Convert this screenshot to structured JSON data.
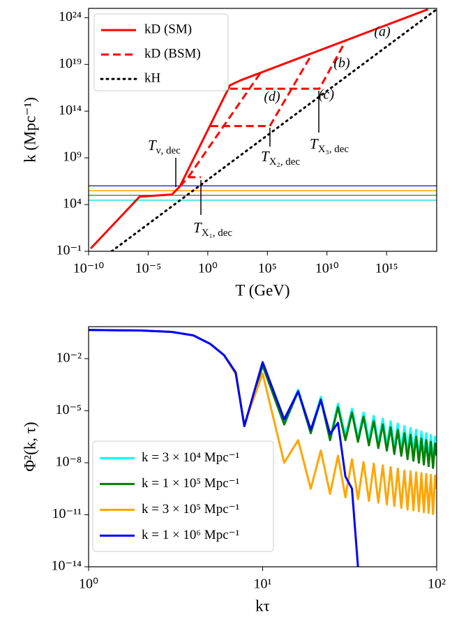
{
  "chart_data": [
    {
      "type": "line",
      "xscale": "log",
      "yscale": "log",
      "xlabel": "T (GeV)",
      "ylabel": "k (Mpc⁻¹)",
      "xlim": [
        1e-10,
        1.6e+19
      ],
      "ylim": [
        0.1,
        1e+25
      ],
      "xticks": [
        {
          "value": 1e-10,
          "label": "10⁻¹⁰"
        },
        {
          "value": 1e-05,
          "label": "10⁻⁵"
        },
        {
          "value": 1,
          "label": "10⁰"
        },
        {
          "value": 100000.0,
          "label": "10⁵"
        },
        {
          "value": 10000000000.0,
          "label": "10¹⁰"
        },
        {
          "value": 1000000000000000.0,
          "label": "10¹⁵"
        }
      ],
      "yticks": [
        {
          "value": 0.1,
          "label": "10⁻¹"
        },
        {
          "value": 10000.0,
          "label": "10⁴"
        },
        {
          "value": 1000000000.0,
          "label": "10⁹"
        },
        {
          "value": 100000000000000.0,
          "label": "10¹⁴"
        },
        {
          "value": 1e+19,
          "label": "10¹⁹"
        },
        {
          "value": 1e+24,
          "label": "10²⁴"
        }
      ],
      "legend": "upper left",
      "series": [
        {
          "name": "kD (SM)",
          "color": "#ff0000",
          "style": "solid",
          "x": [
            1.5e-10,
            1.9e-06,
            0.001,
            0.0046,
            74,
            560,
            3e+18
          ],
          "values": [
            0.2,
            70000.0,
            120000.0,
            900000.0,
            6e+16,
            2e+17,
            8e+24
          ]
        },
        {
          "name": "kD (BSM)",
          "color": "#ff0000",
          "style": "dashed",
          "x": [
            0.0046,
            0.023,
            0.26,
            null,
            0.023,
            32000.0,
            null,
            1.7,
            160000.0,
            510000000.0,
            null,
            74,
            2300000000.0,
            330000000000.0
          ],
          "values": [
            900000.0,
            8500000.0,
            8500000.0,
            null,
            8500000.0,
            1.8e+18,
            null,
            2500000000000.0,
            2500000000000.0,
            1.1e+20,
            null,
            2.5e+16,
            2.5e+16,
            2.5e+21
          ]
        },
        {
          "name": "kH",
          "color": "#000000",
          "style": "dotted",
          "x": [
            8.5e-09,
            1.6e+19
          ],
          "values": [
            0.1,
            8e+24
          ]
        }
      ],
      "hlines": [
        {
          "value": 1000000.0,
          "color": "#2a3bd6"
        },
        {
          "value": 300000.0,
          "color": "#ffa500"
        },
        {
          "value": 100000.0,
          "color": "#4c9a2a"
        },
        {
          "value": 30000.0,
          "color": "#22e0e0"
        }
      ],
      "annotations": [
        {
          "symbol": "T",
          "subscript": "ν, dec"
        },
        {
          "symbol": "T",
          "subscript": "X₁, dec"
        },
        {
          "symbol": "T",
          "subscript": "X₂, dec"
        },
        {
          "symbol": "T",
          "subscript": "X₃, dec"
        }
      ],
      "labels": [
        "(a)",
        "(b)",
        "(c)",
        "(d)"
      ],
      "label_color": "#800080"
    },
    {
      "type": "line",
      "xscale": "log",
      "yscale": "log",
      "xlabel": "kτ",
      "ylabel": "Φ²(k, τ)",
      "xlim": [
        1,
        100
      ],
      "ylim": [
        1e-14,
        0.7
      ],
      "xticks": [
        {
          "value": 1,
          "label": "10⁰"
        },
        {
          "value": 10,
          "label": "10¹"
        },
        {
          "value": 100,
          "label": "10²"
        }
      ],
      "yticks": [
        {
          "value": 0.01,
          "label": "10⁻²"
        },
        {
          "value": 1e-05,
          "label": "10⁻⁵"
        },
        {
          "value": 1e-08,
          "label": "10⁻⁸"
        },
        {
          "value": 1e-11,
          "label": "10⁻¹¹"
        },
        {
          "value": 1e-14,
          "label": "10⁻¹⁴"
        }
      ],
      "legend": "lower left",
      "x": [
        1,
        2,
        3,
        4,
        5,
        6,
        7,
        7.85,
        10,
        13.3,
        16,
        18.9,
        21.6,
        24.4,
        27.1,
        29.9,
        32.6,
        35.3,
        38,
        40.8,
        43.5,
        46.2,
        49,
        51.7,
        54.4,
        57.1,
        59.8,
        62.6,
        65.3,
        68,
        70.8,
        73.5,
        76.2,
        79,
        81.7,
        84.4,
        87.1,
        89.9,
        92.6,
        95.3,
        98,
        100
      ],
      "series": [
        {
          "name": "k = 3 × 10⁴ Mpc⁻¹",
          "color": "#00ffff",
          "style": "solid",
          "values": [
            0.45,
            0.42,
            0.35,
            0.22,
            0.071,
            0.016,
            0.0016,
            1.3e-06,
            0.0045,
            2e-06,
            0.00016,
            6.3e-07,
            6.3e-05,
            2.5e-07,
            2.5e-05,
            3.2e-07,
            1.3e-05,
            2.5e-07,
            7.9e-06,
            2e-07,
            5e-06,
            1.3e-07,
            3.5e-06,
            1e-07,
            2.5e-06,
            6.3e-08,
            1.8e-06,
            5e-08,
            1.3e-06,
            4e-08,
            1e-06,
            3.2e-08,
            7.9e-07,
            2.5e-08,
            6.3e-07,
            2e-08,
            5e-07,
            1.6e-08,
            4e-07,
            1.3e-08,
            3.2e-07,
            2e-07
          ]
        },
        {
          "name": "k = 1 × 10⁵ Mpc⁻¹",
          "color": "#008000",
          "style": "solid",
          "values": [
            0.45,
            0.42,
            0.35,
            0.22,
            0.071,
            0.016,
            0.0016,
            1.3e-06,
            0.004,
            1.6e-06,
            0.00013,
            5e-07,
            4.5e-05,
            2e-07,
            1.6e-05,
            2e-07,
            7.9e-06,
            1.6e-07,
            4.5e-06,
            1e-07,
            2.5e-06,
            7e-08,
            1.6e-06,
            5e-08,
            1.1e-06,
            3.2e-08,
            7.9e-07,
            2.5e-08,
            5e-07,
            1.6e-08,
            4e-07,
            1.3e-08,
            3.2e-07,
            1e-08,
            2.5e-07,
            7.9e-09,
            2e-07,
            6.3e-09,
            1.6e-07,
            5e-09,
            1.3e-07,
            2.5e-08
          ]
        },
        {
          "name": "k = 3 × 10⁵ Mpc⁻¹",
          "color": "#ffa500",
          "style": "solid",
          "values": [
            0.45,
            0.42,
            0.35,
            0.22,
            0.071,
            0.016,
            0.0013,
            1.6e-06,
            0.0014,
            1e-08,
            2e-07,
            3.2e-10,
            5e-08,
            1.6e-10,
            2.5e-08,
            1e-10,
            1.6e-08,
            7.9e-11,
            1.1e-08,
            6.3e-11,
            8.9e-09,
            5e-11,
            7e-09,
            4e-11,
            5.6e-09,
            3.2e-11,
            4.5e-09,
            2.5e-11,
            3.5e-09,
            2e-11,
            3.2e-09,
            1.8e-11,
            2.8e-09,
            1.6e-11,
            2.5e-09,
            1.4e-11,
            2.2e-09,
            1.3e-11,
            2e-09,
            1.1e-11,
            1.8e-09,
            3e-10
          ]
        },
        {
          "name": "k = 1 × 10⁶ Mpc⁻¹",
          "color": "#0000ff",
          "style": "solid",
          "values": [
            0.45,
            0.42,
            0.35,
            0.22,
            0.071,
            0.016,
            0.0016,
            1.3e-06,
            0.0063,
            3.2e-06,
            0.00013,
            7.9e-07,
            4e-05,
            4.5e-07,
            2e-06,
            1.6e-09,
            3.2e-10,
            1e-14,
            null,
            null,
            null,
            null,
            null,
            null,
            null,
            null,
            null,
            null,
            null,
            null,
            null,
            null,
            null,
            null,
            null,
            null,
            null,
            null,
            null,
            null,
            null,
            null
          ]
        }
      ]
    }
  ]
}
